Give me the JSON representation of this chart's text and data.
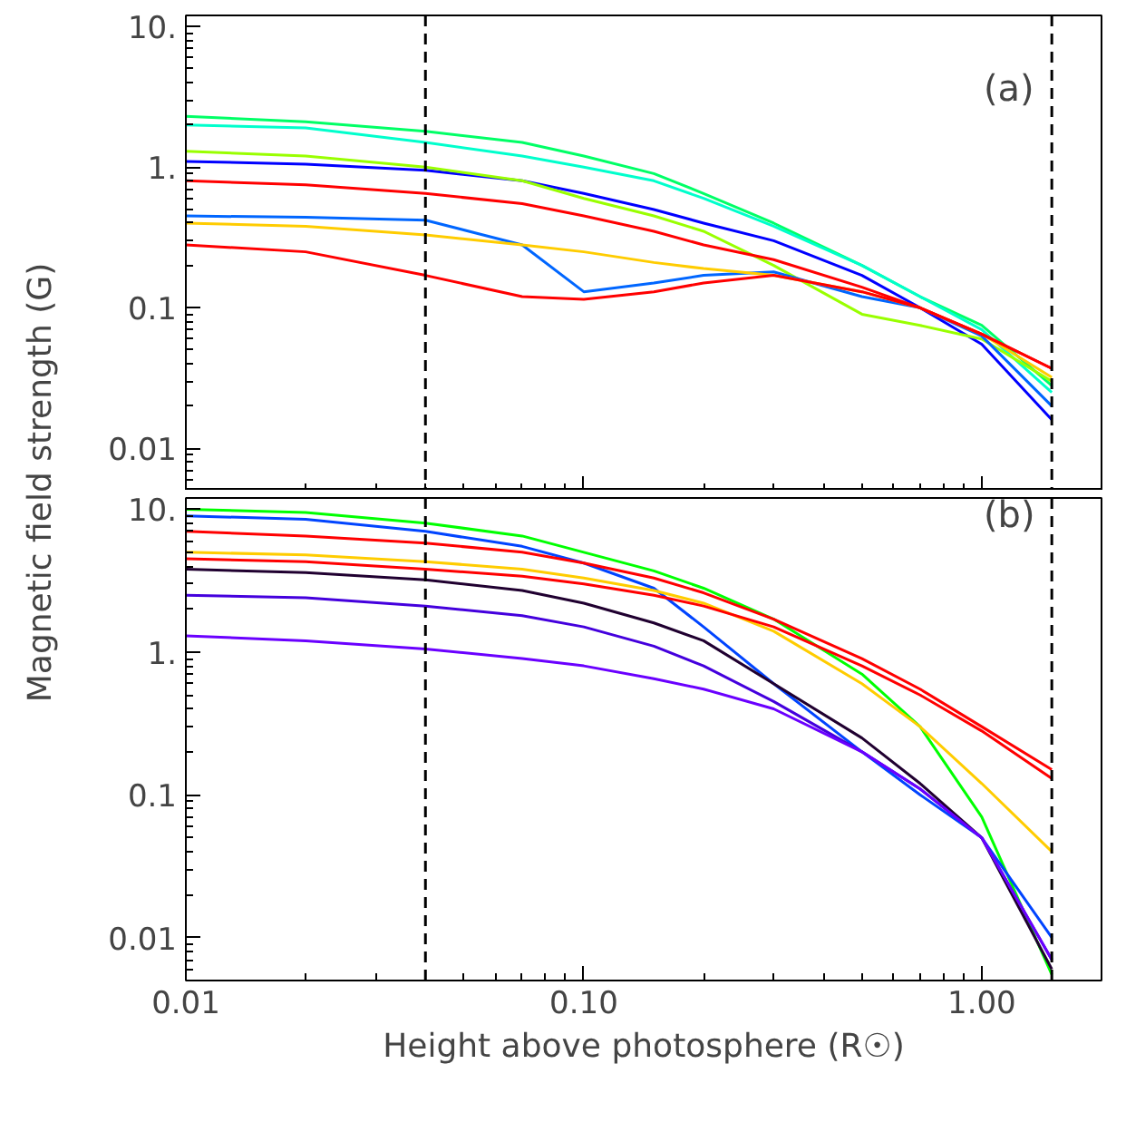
{
  "chart_data": [
    {
      "type": "line",
      "ylabel": "Magnetic field strength (G)",
      "log": "xy",
      "tick_labels": "y",
      "x": [
        0.01,
        0.02,
        0.04,
        0.07,
        0.1,
        0.15,
        0.2,
        0.3,
        0.5,
        0.7,
        1.0,
        1.5
      ],
      "xlim": [
        0.01,
        2.0
      ],
      "ylim": [
        0.005,
        12
      ],
      "xticks": [
        {
          "value": 0.01,
          "label": null
        },
        {
          "value": 0.1,
          "label": null
        },
        {
          "value": 1,
          "label": null
        }
      ],
      "yticks": [
        {
          "value": 0.01,
          "label": "0.01"
        },
        {
          "value": 0.1,
          "label": "0.1"
        },
        {
          "value": 1,
          "label": "1."
        },
        {
          "value": 10,
          "label": "10."
        }
      ],
      "series": [
        {
          "color": "#00ff66",
          "values": [
            2.3,
            2.1,
            1.8,
            1.5,
            1.2,
            0.9,
            0.65,
            0.4,
            0.2,
            0.12,
            0.075,
            0.028
          ]
        },
        {
          "color": "#00ffcc",
          "values": [
            2.0,
            1.9,
            1.5,
            1.2,
            1.0,
            0.8,
            0.6,
            0.38,
            0.2,
            0.12,
            0.07,
            0.025
          ]
        },
        {
          "color": "#0000ff",
          "values": [
            1.1,
            1.05,
            0.95,
            0.8,
            0.65,
            0.5,
            0.4,
            0.3,
            0.17,
            0.1,
            0.055,
            0.016
          ]
        },
        {
          "color": "#99ff00",
          "values": [
            1.3,
            1.2,
            1.0,
            0.8,
            0.6,
            0.45,
            0.35,
            0.2,
            0.09,
            0.075,
            0.06,
            0.03
          ]
        },
        {
          "color": "#0066ff",
          "values": [
            0.45,
            0.44,
            0.42,
            0.28,
            0.13,
            0.15,
            0.17,
            0.18,
            0.12,
            0.1,
            0.063,
            0.02
          ]
        },
        {
          "color": "#ffcc00",
          "values": [
            0.4,
            0.38,
            0.33,
            0.28,
            0.25,
            0.21,
            0.19,
            0.17,
            0.13,
            0.1,
            0.065,
            0.032
          ]
        },
        {
          "color": "#ff0000",
          "values": [
            0.8,
            0.75,
            0.65,
            0.55,
            0.45,
            0.35,
            0.28,
            0.22,
            0.14,
            0.1,
            0.065,
            0.037
          ]
        },
        {
          "color": "#ff0000",
          "values": [
            0.28,
            0.25,
            0.17,
            0.12,
            0.115,
            0.13,
            0.15,
            0.17,
            0.13,
            0.1,
            0.065,
            0.037
          ]
        }
      ],
      "ref_lines": [
        {
          "axis": "x",
          "value": 0.04,
          "color": "#000000",
          "line_style": "dashed"
        },
        {
          "axis": "x",
          "value": 1.5,
          "color": "#000000",
          "line_style": "dashed"
        }
      ],
      "annotations": [
        "(a)"
      ]
    },
    {
      "type": "line",
      "xlabel": "Height above photosphere (R☉)",
      "log": "xy",
      "x": [
        0.01,
        0.02,
        0.04,
        0.07,
        0.1,
        0.15,
        0.2,
        0.3,
        0.5,
        0.7,
        1.0,
        1.5
      ],
      "xlim": [
        0.01,
        2.0
      ],
      "ylim": [
        0.005,
        12
      ],
      "xticks": [
        {
          "value": 0.01,
          "label": "0.01"
        },
        {
          "value": 0.1,
          "label": "0.10"
        },
        {
          "value": 1,
          "label": "1.00"
        }
      ],
      "yticks": [
        {
          "value": 0.01,
          "label": "0.01"
        },
        {
          "value": 0.1,
          "label": "0.1"
        },
        {
          "value": 1,
          "label": "1."
        },
        {
          "value": 10,
          "label": "10."
        }
      ],
      "series": [
        {
          "color": "#00ff00",
          "values": [
            10,
            9.5,
            8,
            6.5,
            5,
            3.7,
            2.8,
            1.7,
            0.7,
            0.3,
            0.07,
            0.0055
          ]
        },
        {
          "color": "#0044ff",
          "values": [
            9,
            8.5,
            7,
            5.5,
            4.2,
            2.8,
            1.5,
            0.6,
            0.2,
            0.1,
            0.05,
            0.01
          ]
        },
        {
          "color": "#ffcc00",
          "values": [
            5,
            4.8,
            4.3,
            3.8,
            3.3,
            2.7,
            2.2,
            1.4,
            0.6,
            0.3,
            0.12,
            0.04
          ]
        },
        {
          "color": "#ff0000",
          "values": [
            7,
            6.5,
            5.8,
            5,
            4.2,
            3.3,
            2.6,
            1.7,
            0.9,
            0.55,
            0.3,
            0.15
          ]
        },
        {
          "color": "#ff0000",
          "values": [
            4.5,
            4.3,
            3.8,
            3.4,
            3,
            2.5,
            2.1,
            1.5,
            0.8,
            0.5,
            0.28,
            0.13
          ]
        },
        {
          "color": "#200030",
          "values": [
            3.8,
            3.6,
            3.2,
            2.7,
            2.2,
            1.6,
            1.2,
            0.6,
            0.25,
            0.12,
            0.05,
            0.006
          ]
        },
        {
          "color": "#4400dd",
          "values": [
            2.5,
            2.4,
            2.1,
            1.8,
            1.5,
            1.1,
            0.8,
            0.45,
            0.2,
            0.11,
            0.05,
            0.007
          ]
        },
        {
          "color": "#6a00ff",
          "values": [
            1.3,
            1.2,
            1.05,
            0.9,
            0.8,
            0.65,
            0.55,
            0.4,
            0.2,
            0.11,
            0.05,
            0.007
          ]
        }
      ],
      "ref_lines": [
        {
          "axis": "x",
          "value": 0.04,
          "color": "#000000",
          "line_style": "dashed"
        },
        {
          "axis": "x",
          "value": 1.5,
          "color": "#000000",
          "line_style": "dashed"
        }
      ],
      "annotations": [
        "(b)"
      ]
    }
  ]
}
